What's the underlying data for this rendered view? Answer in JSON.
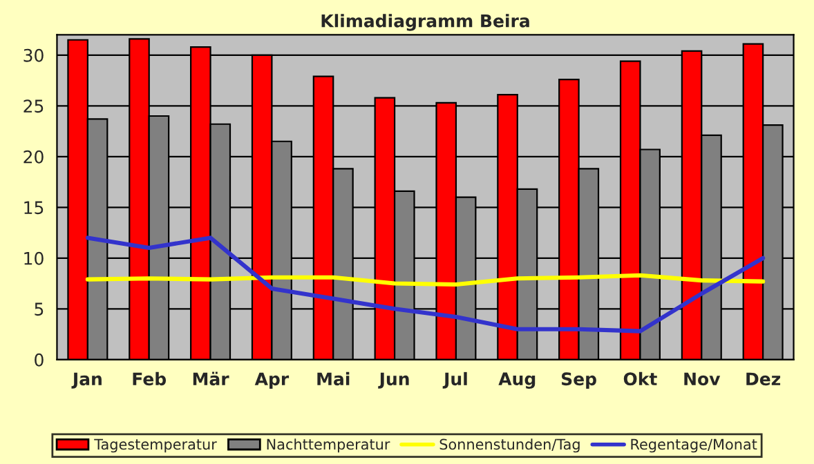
{
  "chart_data": {
    "type": "bar",
    "title": "Klimadiagramm Beira",
    "categories": [
      "Jan",
      "Feb",
      "Mär",
      "Apr",
      "Mai",
      "Jun",
      "Jul",
      "Aug",
      "Sep",
      "Okt",
      "Nov",
      "Dez"
    ],
    "series": [
      {
        "name": "Tagestemperatur",
        "color": "#ff0000",
        "values": [
          31.5,
          31.6,
          30.8,
          30.0,
          27.9,
          25.8,
          25.3,
          26.1,
          27.6,
          29.4,
          30.4,
          31.1
        ]
      },
      {
        "name": "Nachttemperatur",
        "color": "#808080",
        "values": [
          23.7,
          24.0,
          23.2,
          21.5,
          18.8,
          16.6,
          16.0,
          16.8,
          18.8,
          20.7,
          22.1,
          23.1
        ]
      },
      {
        "name": "Sonnenstunden/Tag",
        "type": "line",
        "color": "#ffff00",
        "values": [
          7.9,
          8.0,
          7.9,
          8.1,
          8.1,
          7.5,
          7.4,
          8.0,
          8.1,
          8.3,
          7.8,
          7.7
        ]
      },
      {
        "name": "Regentage/Monat",
        "type": "line",
        "color": "#3333cc",
        "values": [
          12.0,
          11.0,
          12.0,
          7.0,
          6.0,
          5.0,
          4.2,
          3.0,
          3.0,
          2.8,
          6.5,
          10.0
        ]
      }
    ],
    "ylim": [
      0,
      32
    ],
    "yticks": [
      0,
      5,
      10,
      15,
      20,
      25,
      30
    ],
    "grid": "y",
    "legend": "bottom"
  }
}
